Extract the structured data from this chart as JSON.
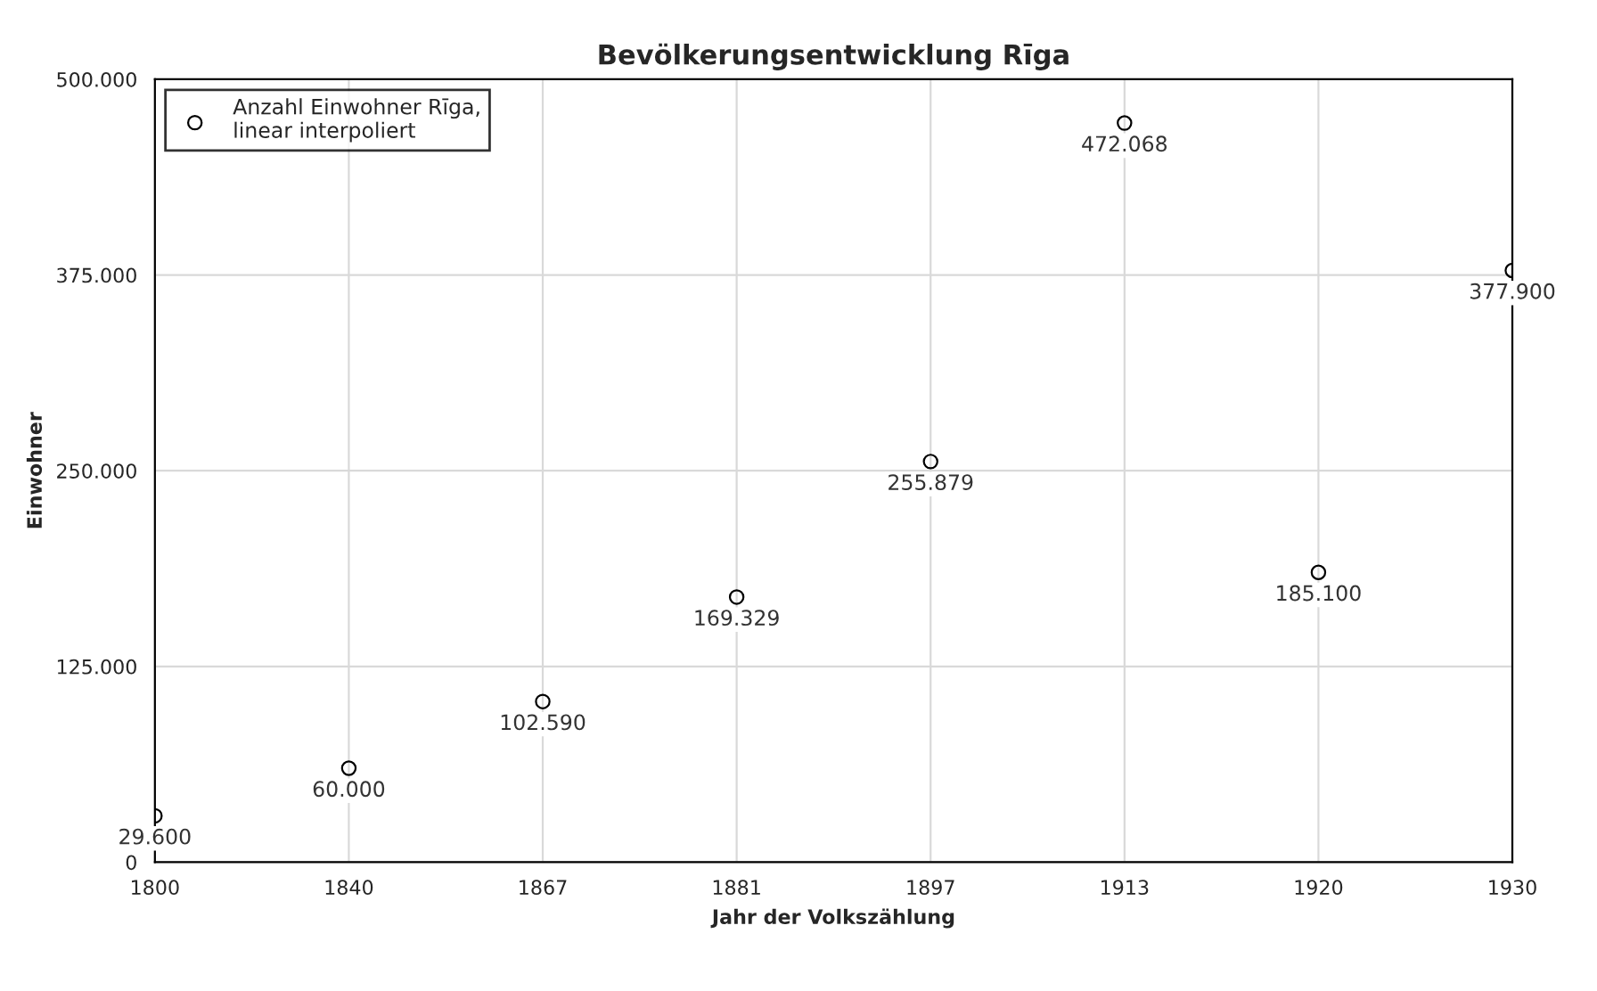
{
  "chart_data": {
    "type": "scatter",
    "title": "Bevölkerungsentwicklung Rīga",
    "xlabel": "Jahr der Volkszählung",
    "ylabel": "Einwohner",
    "categories": [
      "1800",
      "1840",
      "1867",
      "1881",
      "1897",
      "1913",
      "1920",
      "1930"
    ],
    "series": [
      {
        "name": "Anzahl Einwohner Rīga,\nlinear interpoliert",
        "color": "#000000",
        "values": [
          29600,
          60000,
          102590,
          169329,
          255879,
          472068,
          185100,
          377900
        ],
        "value_labels": [
          "29.600",
          "60.000",
          "102.590",
          "169.329",
          "255.879",
          "472.068",
          "185.100",
          "377.900"
        ]
      }
    ],
    "ylim": [
      0,
      500000
    ],
    "yticks": [
      {
        "value": 0,
        "label": "0"
      },
      {
        "value": 125000,
        "label": "125.000"
      },
      {
        "value": 250000,
        "label": "250.000"
      },
      {
        "value": 375000,
        "label": "375.000"
      },
      {
        "value": 500000,
        "label": "500.000"
      }
    ],
    "grid": true,
    "legend": "top left",
    "marker": "circle"
  }
}
